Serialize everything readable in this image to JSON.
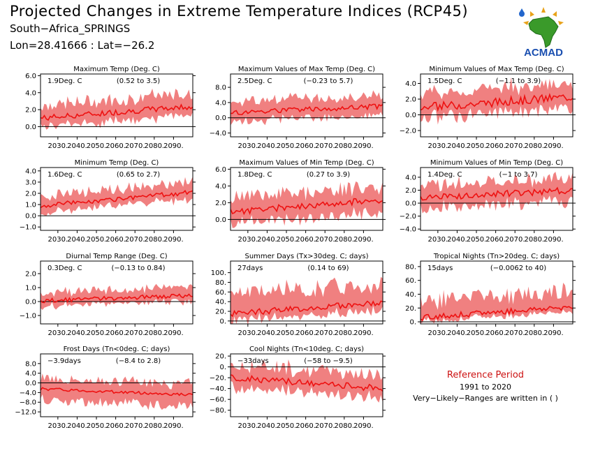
{
  "header": {
    "title": "Projected Changes in Extreme Temperature Indices (RCP45)",
    "subtitle": "South−Africa_SPRINGS",
    "coords": "Lon=28.41666 : Lat=−26.2",
    "logo_text": "ACMAD"
  },
  "reference": {
    "title": "Reference Period",
    "years": "1991 to 2020",
    "note": "Very−Likely−Ranges are written in ( )"
  },
  "colors": {
    "band": "#f08080",
    "line": "#ee1111",
    "axis": "#000000",
    "ref_title": "#cc1111"
  },
  "x_ticks": [
    "2030.",
    "2040.",
    "2050.",
    "2060.",
    "2070.",
    "2080.",
    "2090."
  ],
  "chart_data": [
    {
      "type": "line",
      "title": "Maximum Temp (Deg. C)",
      "value_label": "1.9Deg. C",
      "range_label": "(0.52 to 3.5)",
      "x_range": [
        2021,
        2100
      ],
      "ylim": [
        -1.2,
        6.2
      ],
      "y_ticks": [
        0,
        2,
        4,
        6
      ],
      "y_tick_labels": [
        "0.0",
        "2.0",
        "4.0",
        "6.0"
      ],
      "start": 1.0,
      "end": 2.4,
      "band_lo": 1.0,
      "band_hi": 1.5,
      "noise": 0.35
    },
    {
      "type": "line",
      "title": "Maximum Values of Max Temp (Deg. C)",
      "value_label": "2.5Deg. C",
      "range_label": "(−0.23 to 5.7)",
      "x_range": [
        2021,
        2100
      ],
      "ylim": [
        -5,
        11.5
      ],
      "y_ticks": [
        -4,
        0,
        4,
        8
      ],
      "y_tick_labels": [
        "−4.0",
        "0.0",
        "4.0",
        "8.0"
      ],
      "start": 1.3,
      "end": 3.0,
      "band_lo": 2.3,
      "band_hi": 2.8,
      "noise": 0.7
    },
    {
      "type": "line",
      "title": "Minimum Values of Max Temp (Deg. C)",
      "value_label": "1.5Deg. C",
      "range_label": "(−1.1 to 3.9)",
      "x_range": [
        2021,
        2100
      ],
      "ylim": [
        -2.8,
        5.2
      ],
      "y_ticks": [
        -2,
        0,
        2,
        4
      ],
      "y_tick_labels": [
        "−2.0",
        "0.0",
        "2.0",
        "4.0"
      ],
      "start": 0.9,
      "end": 2.3,
      "band_lo": 1.3,
      "band_hi": 1.8,
      "noise": 0.55
    },
    {
      "type": "line",
      "title": "Minimum Temp (Deg. C)",
      "value_label": "1.6Deg. C",
      "range_label": "(0.65 to 2.7)",
      "x_range": [
        2021,
        2100
      ],
      "ylim": [
        -1.3,
        4.3
      ],
      "y_ticks": [
        -1,
        0,
        1,
        2,
        3,
        4
      ],
      "y_tick_labels": [
        "−1.0",
        "0.0",
        "1.0",
        "2.0",
        "3.0",
        "4.0"
      ],
      "start": 0.9,
      "end": 2.1,
      "band_lo": 0.6,
      "band_hi": 0.9,
      "noise": 0.2
    },
    {
      "type": "line",
      "title": "Maximum Values of Min Temp (Deg. C)",
      "value_label": "1.8Deg. C",
      "range_label": "(0.27 to 3.9)",
      "x_range": [
        2021,
        2100
      ],
      "ylim": [
        -1.3,
        6.2
      ],
      "y_ticks": [
        0,
        2,
        4,
        6
      ],
      "y_tick_labels": [
        "0.0",
        "2.0",
        "4.0",
        "6.0"
      ],
      "start": 0.9,
      "end": 2.4,
      "band_lo": 1.4,
      "band_hi": 1.7,
      "noise": 0.4
    },
    {
      "type": "line",
      "title": "Minimum Values of Min Temp (Deg. C)",
      "value_label": "1.4Deg. C",
      "range_label": "(−1 to 3.7)",
      "x_range": [
        2021,
        2100
      ],
      "ylim": [
        -4.2,
        5.5
      ],
      "y_ticks": [
        -4,
        -2,
        0,
        2,
        4
      ],
      "y_tick_labels": [
        "−4.0",
        "−2.0",
        "0.0",
        "2.0",
        "4.0"
      ],
      "start": 0.8,
      "end": 2.0,
      "band_lo": 1.6,
      "band_hi": 2.0,
      "noise": 0.5
    },
    {
      "type": "line",
      "title": "Diurnal Temp Range (Deg. C)",
      "value_label": "0.3Deg. C",
      "range_label": "(−0.13 to 0.84)",
      "x_range": [
        2021,
        2100
      ],
      "ylim": [
        -1.6,
        2.9
      ],
      "y_ticks": [
        -1,
        0,
        1,
        2
      ],
      "y_tick_labels": [
        "−1.0",
        "0.0",
        "1.0",
        "2.0"
      ],
      "start": 0.05,
      "end": 0.45,
      "band_lo": 0.4,
      "band_hi": 0.6,
      "noise": 0.15
    },
    {
      "type": "line",
      "title": "Summer Days (Tx>30deg. C; days)",
      "value_label": "27days",
      "range_label": "(0.14 to 69)",
      "x_range": [
        2021,
        2100
      ],
      "ylim": [
        -6,
        124
      ],
      "y_ticks": [
        0,
        20,
        40,
        60,
        80,
        100
      ],
      "y_tick_labels": [
        "0.",
        "20.",
        "40.",
        "60.",
        "80.",
        "100."
      ],
      "start": 15,
      "end": 38,
      "band_lo": 15,
      "band_hi": 40,
      "noise": 6
    },
    {
      "type": "line",
      "title": "Tropical Nights (Tn>20deg. C; days)",
      "value_label": "15days",
      "range_label": "(−0.0062 to 40)",
      "x_range": [
        2021,
        2100
      ],
      "ylim": [
        -3,
        88
      ],
      "y_ticks": [
        0,
        20,
        40,
        60,
        80
      ],
      "y_tick_labels": [
        "0.",
        "20.",
        "40.",
        "60.",
        "80."
      ],
      "start": 6,
      "end": 22,
      "band_lo": 6,
      "band_hi": 24,
      "noise": 4
    },
    {
      "type": "line",
      "title": "Frost Days (Tn<0deg. C; days)",
      "value_label": "−3.9days",
      "range_label": "(−8.4 to 2.8)",
      "x_range": [
        2021,
        2100
      ],
      "ylim": [
        -14,
        12
      ],
      "y_ticks": [
        -12,
        -8,
        -4,
        0,
        4,
        8
      ],
      "y_tick_labels": [
        "−12.0",
        "−8.0",
        "−4.0",
        "0.0",
        "4.0",
        "8.0"
      ],
      "start": -2.5,
      "end": -5.0,
      "band_lo": 4.5,
      "band_hi": 4.5,
      "noise": 0.6
    },
    {
      "type": "line",
      "title": "Cool Nights (Tn<10deg. C; days)",
      "value_label": "−33days",
      "range_label": "(−58 to −9.5)",
      "x_range": [
        2021,
        2100
      ],
      "ylim": [
        -92,
        24
      ],
      "y_ticks": [
        -80,
        -60,
        -40,
        -20,
        0,
        20
      ],
      "y_tick_labels": [
        "−80.",
        "−60.",
        "−40.",
        "−20.",
        "0.",
        "20."
      ],
      "start": -20,
      "end": -40,
      "band_lo": 18,
      "band_hi": 25,
      "noise": 6
    }
  ]
}
